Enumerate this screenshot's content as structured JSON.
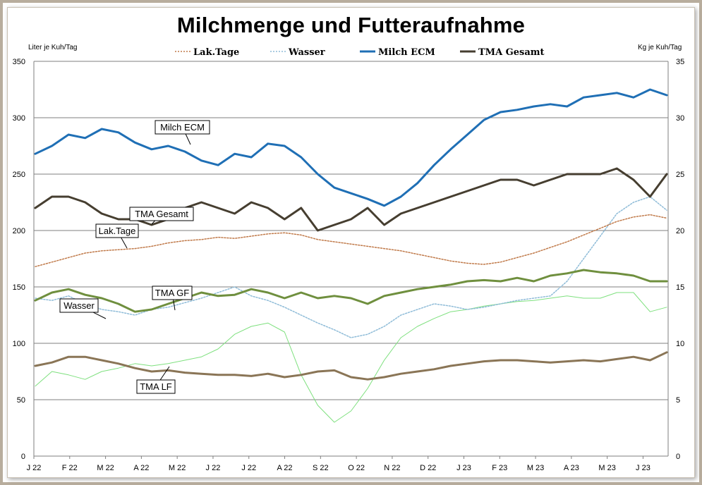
{
  "chart_data": {
    "type": "line",
    "title": "Milchmenge und Futteraufnahme",
    "ylabel_left": "Liter je Kuh/Tag",
    "ylabel_right": "Kg  je Kuh/Tag",
    "ylim_left": [
      0,
      350
    ],
    "ylim_right": [
      0,
      35
    ],
    "yticks_left": [
      "0",
      "50",
      "100",
      "150",
      "200",
      "250",
      "300",
      "350"
    ],
    "yticks_right": [
      "0",
      "5",
      "10",
      "15",
      "20",
      "25",
      "30",
      "35"
    ],
    "grid": true,
    "legend_position": "top",
    "legend": [
      "Lak.Tage",
      "Wasser",
      "Milch ECM",
      "TMA Gesamt"
    ],
    "x_labels": [
      "J 22",
      "F 22",
      "M 22",
      "A 22",
      "M 22",
      "J 22",
      "J 22",
      "A 22",
      "S 22",
      "O 22",
      "N 22",
      "D 22",
      "J 23",
      "F 23",
      "M 23",
      "A 23",
      "M 23",
      "J 23"
    ],
    "annotations": [
      {
        "text": "Milch ECM",
        "series": "Milch ECM"
      },
      {
        "text": "TMA Gesamt",
        "series": "TMA Gesamt"
      },
      {
        "text": "Lak.Tage",
        "series": "Lak.Tage"
      },
      {
        "text": "Wasser",
        "series": "Wasser"
      },
      {
        "text": "TMA GF",
        "series": "TMA GF"
      },
      {
        "text": "TMA LF",
        "series": "TMA LF"
      }
    ],
    "series": [
      {
        "name": "Milch ECM",
        "axis": "left",
        "color": "#1f6fb5",
        "style": "solid",
        "width": 3,
        "values": [
          268,
          275,
          285,
          282,
          290,
          287,
          278,
          272,
          275,
          270,
          262,
          258,
          268,
          265,
          277,
          275,
          265,
          250,
          238,
          233,
          228,
          222,
          230,
          242,
          258,
          272,
          285,
          298,
          305,
          307,
          310,
          312,
          310,
          318,
          320,
          322,
          318,
          325,
          320
        ]
      },
      {
        "name": "TMA Gesamt",
        "axis": "right",
        "color": "#463e30",
        "style": "solid",
        "width": 3,
        "values": [
          22.0,
          23.0,
          23.0,
          22.5,
          21.5,
          21.0,
          21.0,
          20.5,
          21.0,
          22.0,
          22.5,
          22.0,
          21.5,
          22.5,
          22.0,
          21.0,
          22.0,
          20.0,
          20.5,
          21.0,
          22.0,
          20.5,
          21.5,
          22.0,
          22.5,
          23.0,
          23.5,
          24.0,
          24.5,
          24.5,
          24.0,
          24.5,
          25.0,
          25.0,
          25.0,
          25.5,
          24.5,
          23.0,
          25.0
        ]
      },
      {
        "name": "Lak.Tage",
        "axis": "left",
        "color": "#c07a4a",
        "style": "dotted",
        "width": 1.5,
        "values": [
          168,
          172,
          176,
          180,
          182,
          183,
          184,
          186,
          189,
          191,
          192,
          194,
          193,
          195,
          197,
          198,
          196,
          192,
          190,
          188,
          186,
          184,
          182,
          179,
          176,
          173,
          171,
          170,
          172,
          176,
          180,
          185,
          190,
          196,
          202,
          208,
          212,
          214,
          211
        ]
      },
      {
        "name": "Wasser",
        "axis": "left",
        "color": "#8fbcd8",
        "style": "dotted",
        "width": 1.5,
        "values": [
          140,
          138,
          142,
          135,
          130,
          128,
          125,
          130,
          132,
          136,
          140,
          145,
          150,
          142,
          138,
          132,
          125,
          118,
          112,
          105,
          108,
          115,
          125,
          130,
          135,
          133,
          130,
          132,
          135,
          138,
          140,
          142,
          155,
          175,
          195,
          215,
          225,
          230,
          218
        ]
      },
      {
        "name": "TMA GF",
        "axis": "right",
        "color": "#6f8f3e",
        "style": "solid",
        "width": 3,
        "values": [
          13.8,
          14.5,
          14.8,
          14.3,
          14.0,
          13.5,
          12.8,
          13.0,
          13.5,
          14.0,
          14.5,
          14.2,
          14.3,
          14.8,
          14.5,
          14.0,
          14.5,
          14.0,
          14.2,
          14.0,
          13.5,
          14.2,
          14.5,
          14.8,
          15.0,
          15.2,
          15.5,
          15.6,
          15.5,
          15.8,
          15.5,
          16.0,
          16.2,
          16.5,
          16.3,
          16.2,
          16.0,
          15.5,
          15.5
        ]
      },
      {
        "name": "TMA LF",
        "axis": "right",
        "color": "#8a7556",
        "style": "solid",
        "width": 3,
        "values": [
          8.0,
          8.3,
          8.8,
          8.8,
          8.5,
          8.2,
          7.8,
          7.5,
          7.6,
          7.4,
          7.3,
          7.2,
          7.2,
          7.1,
          7.3,
          7.0,
          7.2,
          7.5,
          7.6,
          7.0,
          6.8,
          7.0,
          7.3,
          7.5,
          7.7,
          8.0,
          8.2,
          8.4,
          8.5,
          8.5,
          8.4,
          8.3,
          8.4,
          8.5,
          8.4,
          8.6,
          8.8,
          8.5,
          9.2
        ]
      },
      {
        "name": "",
        "axis": "left",
        "color": "#7ee07e",
        "style": "solid",
        "width": 1,
        "values": [
          62,
          75,
          72,
          68,
          75,
          78,
          82,
          80,
          82,
          85,
          88,
          95,
          108,
          115,
          118,
          110,
          72,
          45,
          30,
          40,
          60,
          85,
          105,
          115,
          122,
          128,
          130,
          133,
          135,
          137,
          138,
          140,
          142,
          140,
          140,
          145,
          145,
          128,
          132
        ]
      }
    ]
  }
}
